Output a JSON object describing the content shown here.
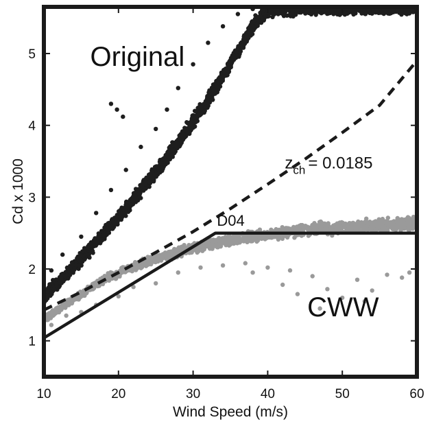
{
  "chart_data": {
    "type": "scatter",
    "title": "",
    "xlabel": "Wind Speed (m/s)",
    "ylabel": "Cd x 1000",
    "xlim": [
      10,
      60
    ],
    "ylim": [
      0.5,
      5.65
    ],
    "xticks": [
      10,
      20,
      30,
      40,
      50,
      60
    ],
    "yticks": [
      1,
      2,
      3,
      4,
      5
    ],
    "grid": false,
    "colors": {
      "original": "#1e1e1e",
      "cww": "#9a9a9a",
      "d04": "#1a1a1a",
      "zch": "#1a1a1a"
    },
    "series": [
      {
        "kind": "scatter-band",
        "label_text": "Original",
        "center": [
          [
            10,
            1.62
          ],
          [
            12,
            1.82
          ],
          [
            14,
            2.03
          ],
          [
            16,
            2.25
          ],
          [
            18,
            2.48
          ],
          [
            20,
            2.72
          ],
          [
            22,
            2.97
          ],
          [
            24,
            3.22
          ],
          [
            26,
            3.48
          ],
          [
            28,
            3.76
          ],
          [
            30,
            4.05
          ],
          [
            32,
            4.36
          ],
          [
            34,
            4.68
          ],
          [
            36,
            5.02
          ],
          [
            38,
            5.38
          ],
          [
            40,
            5.62
          ],
          [
            45,
            5.64
          ],
          [
            50,
            5.64
          ],
          [
            55,
            5.64
          ],
          [
            60,
            5.64
          ]
        ],
        "spread": 0.13,
        "outliers": [
          [
            11,
            1.98
          ],
          [
            12.5,
            2.2
          ],
          [
            15,
            2.45
          ],
          [
            17,
            2.78
          ],
          [
            19,
            3.1
          ],
          [
            21,
            3.38
          ],
          [
            23,
            3.7
          ],
          [
            25,
            3.95
          ],
          [
            26.5,
            4.22
          ],
          [
            28,
            4.52
          ],
          [
            30,
            4.85
          ],
          [
            32,
            5.15
          ],
          [
            34,
            5.38
          ],
          [
            36,
            5.55
          ],
          [
            38,
            5.62
          ],
          [
            19,
            4.3
          ],
          [
            19.8,
            4.22
          ],
          [
            20.6,
            4.12
          ]
        ]
      },
      {
        "kind": "scatter-band",
        "label_text": "CWW",
        "center": [
          [
            10,
            1.3
          ],
          [
            14,
            1.58
          ],
          [
            18,
            1.85
          ],
          [
            22,
            2.03
          ],
          [
            26,
            2.18
          ],
          [
            30,
            2.3
          ],
          [
            35,
            2.4
          ],
          [
            40,
            2.48
          ],
          [
            45,
            2.54
          ],
          [
            50,
            2.58
          ],
          [
            55,
            2.61
          ],
          [
            60,
            2.64
          ]
        ],
        "spread": 0.06,
        "outliers": [
          [
            11,
            1.22
          ],
          [
            13,
            1.35
          ],
          [
            15,
            1.4
          ],
          [
            17,
            1.5
          ],
          [
            20,
            1.62
          ],
          [
            22,
            1.75
          ],
          [
            25,
            1.8
          ],
          [
            28,
            1.95
          ],
          [
            31,
            2.02
          ],
          [
            34,
            2.05
          ],
          [
            37,
            2.08
          ],
          [
            40,
            2.02
          ],
          [
            42,
            1.78
          ],
          [
            44,
            1.65
          ],
          [
            46,
            1.9
          ],
          [
            48,
            1.72
          ],
          [
            50,
            1.6
          ],
          [
            52,
            1.85
          ],
          [
            54,
            1.7
          ],
          [
            56,
            1.92
          ],
          [
            58,
            1.88
          ],
          [
            59,
            1.95
          ],
          [
            47,
            1.45
          ],
          [
            53,
            1.55
          ],
          [
            43,
            1.98
          ],
          [
            38,
            1.95
          ]
        ]
      },
      {
        "kind": "line",
        "label_text": "D04",
        "style": "solid",
        "points": [
          [
            10,
            1.04
          ],
          [
            33,
            2.5
          ],
          [
            60,
            2.5
          ]
        ]
      },
      {
        "kind": "line",
        "label_text": "z",
        "label_subscript": "ch",
        "label_value": "= 0.0185",
        "style": "dashed",
        "points": [
          [
            10,
            1.43
          ],
          [
            15,
            1.68
          ],
          [
            20,
            1.95
          ],
          [
            25,
            2.23
          ],
          [
            30,
            2.52
          ],
          [
            35,
            2.84
          ],
          [
            40,
            3.18
          ],
          [
            45,
            3.53
          ],
          [
            50,
            3.9
          ],
          [
            55,
            4.28
          ],
          [
            60,
            4.9
          ]
        ]
      }
    ]
  }
}
